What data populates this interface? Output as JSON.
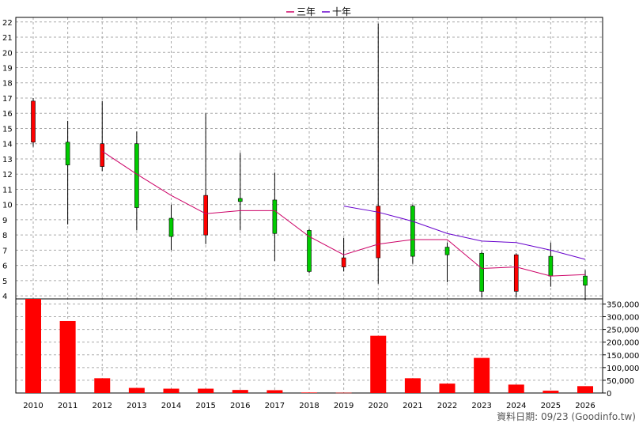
{
  "chart_data": {
    "type": "candlestick",
    "legend": {
      "placement": "top-center",
      "items": [
        {
          "name": "三年",
          "color": "#cc0066"
        },
        {
          "name": "十年",
          "color": "#6600cc"
        }
      ]
    },
    "colors": {
      "up": "#ff0000",
      "down": "#00cc00",
      "volume": "#ff0000",
      "wick": "#000000"
    },
    "price_axis": {
      "range": [
        3.8,
        22.3
      ],
      "ticks": [
        4,
        5,
        6,
        7,
        8,
        9,
        10,
        11,
        12,
        13,
        14,
        15,
        16,
        17,
        18,
        19,
        20,
        21,
        22
      ]
    },
    "volume_axis": {
      "range": [
        0,
        370000
      ],
      "ticks": [
        0,
        50000,
        100000,
        150000,
        200000,
        250000,
        300000,
        350000
      ],
      "tick_labels": [
        "0",
        "50,000",
        "100,000",
        "150,000",
        "200,000",
        "250,000",
        "300,000",
        "350,000"
      ]
    },
    "years": [
      "2010",
      "2011",
      "2012",
      "2013",
      "2014",
      "2015",
      "2016",
      "2017",
      "2018",
      "2019",
      "2020",
      "2021",
      "2022",
      "2023",
      "2024",
      "2025",
      "2026"
    ],
    "candles": [
      {
        "open": 14.1,
        "close": 16.8,
        "high": 17.0,
        "low": 13.8
      },
      {
        "open": 14.1,
        "close": 12.6,
        "high": 15.5,
        "low": 8.7
      },
      {
        "open": 12.5,
        "close": 14.0,
        "high": 16.8,
        "low": 12.2
      },
      {
        "open": 14.0,
        "close": 9.8,
        "high": 14.8,
        "low": 8.3
      },
      {
        "open": 9.1,
        "close": 7.9,
        "high": 10.0,
        "low": 7.0
      },
      {
        "open": 8.0,
        "close": 10.6,
        "high": 16.0,
        "low": 7.4
      },
      {
        "open": 10.4,
        "close": 10.2,
        "high": 13.4,
        "low": 8.3
      },
      {
        "open": 10.3,
        "close": 8.1,
        "high": 12.1,
        "low": 6.3
      },
      {
        "open": 8.3,
        "close": 5.6,
        "high": 8.4,
        "low": 5.5
      },
      {
        "open": 5.9,
        "close": 6.5,
        "high": 7.8,
        "low": 5.6
      },
      {
        "open": 6.5,
        "close": 9.9,
        "high": 21.9,
        "low": 4.8
      },
      {
        "open": 9.9,
        "close": 6.6,
        "high": 10.0,
        "low": 6.1
      },
      {
        "open": 7.2,
        "close": 6.7,
        "high": 7.5,
        "low": 4.9
      },
      {
        "open": 6.8,
        "close": 4.3,
        "high": 6.9,
        "low": 3.9
      },
      {
        "open": 4.3,
        "close": 6.7,
        "high": 6.8,
        "low": 3.9
      },
      {
        "open": 6.6,
        "close": 5.3,
        "high": 7.5,
        "low": 4.6
      },
      {
        "open": 5.3,
        "close": 4.7,
        "high": 5.7,
        "low": 3.7
      }
    ],
    "ma3": [
      null,
      null,
      13.5,
      12.0,
      10.6,
      9.4,
      9.6,
      9.6,
      7.9,
      6.7,
      7.4,
      7.7,
      7.7,
      5.8,
      5.9,
      5.3,
      5.4
    ],
    "ma10": [
      null,
      null,
      null,
      null,
      null,
      null,
      null,
      null,
      null,
      9.9,
      9.5,
      8.9,
      8.1,
      7.6,
      7.5,
      7.0,
      6.4
    ],
    "volume": [
      370000,
      283000,
      58000,
      20000,
      17000,
      17000,
      12000,
      11000,
      2000,
      1000,
      225000,
      58000,
      37000,
      138000,
      33000,
      9000,
      27000
    ],
    "footer": "資料日期: 09/23 (Goodinfo.tw)"
  }
}
